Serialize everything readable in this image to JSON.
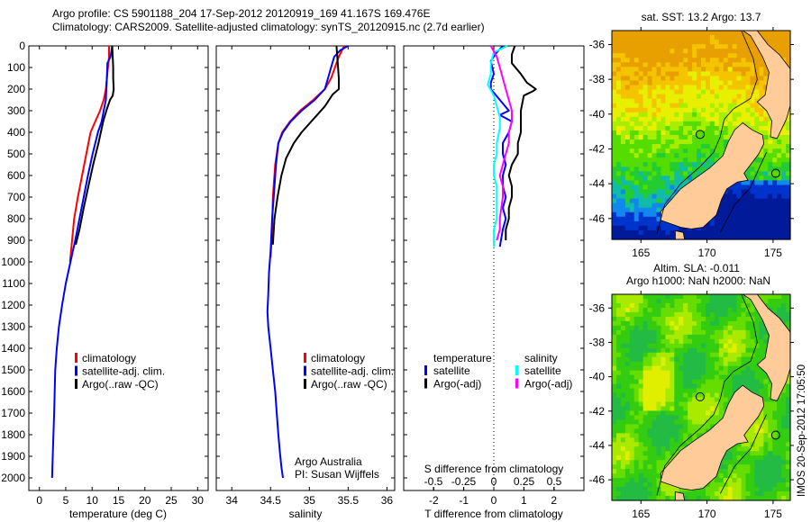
{
  "header": {
    "line1": "Argo profile: CS 5901188_204 17-Sep-2012 20120919_169 41.167S 169.476E",
    "line2": "Climatology: CARS2009. Satellite-adjusted climatology: synTS_20120915.nc (2.7d earlier)"
  },
  "credit": {
    "line1": "Argo Australia",
    "line2": "PI: Susan Wijffels"
  },
  "timestamp": "IMOS 20-Sep-2012 17:05:50",
  "chart_data": [
    {
      "id": "temperature",
      "type": "line",
      "xlabel": "temperature (deg C)",
      "ylabel": "pressure",
      "xlim": [
        -2,
        32
      ],
      "ylim": [
        2080,
        0
      ],
      "xticks": [
        0,
        5,
        10,
        15,
        20,
        25,
        30
      ],
      "yticks": [
        0,
        100,
        200,
        300,
        400,
        500,
        600,
        700,
        800,
        900,
        1000,
        1100,
        1200,
        1300,
        1400,
        1500,
        1600,
        1700,
        1800,
        1900,
        2000
      ],
      "legend": [
        "climatology",
        "satellite-adj. clim.",
        "Argo(..raw -QC)"
      ],
      "legend_position": "lower-center",
      "series": [
        {
          "name": "climatology",
          "color": "#ff0000",
          "x": [
            13.2,
            13.2,
            13.0,
            12.8,
            12.6,
            12.2,
            11.5,
            10.6,
            9.7,
            8.9,
            8.1,
            7.3,
            6.6,
            5.8
          ],
          "y": [
            0,
            50,
            100,
            150,
            200,
            250,
            300,
            350,
            400,
            500,
            600,
            700,
            800,
            1000
          ]
        },
        {
          "name": "satellite-adj. clim.",
          "color": "#0000ff",
          "x": [
            13.8,
            13.5,
            12.9,
            12.8,
            12.7,
            12.6,
            12.2,
            11.8,
            11.1,
            10.1,
            9.2,
            8.4,
            7.6,
            6.8,
            5.9,
            5.0,
            4.3,
            3.7,
            3.3,
            3.0,
            2.8,
            2.6,
            2.4
          ],
          "y": [
            0,
            50,
            80,
            150,
            200,
            250,
            300,
            350,
            400,
            500,
            600,
            700,
            800,
            900,
            1000,
            1100,
            1200,
            1300,
            1400,
            1500,
            1700,
            1850,
            2000
          ]
        },
        {
          "name": "Argo(..raw -QC)",
          "color": "#000000",
          "x": [
            13.8,
            13.9,
            14.0,
            14.0,
            14.1,
            13.9,
            13.4,
            12.7,
            12.1,
            11.2,
            10.2,
            9.3,
            8.4,
            7.6,
            6.9
          ],
          "y": [
            0,
            50,
            100,
            150,
            200,
            230,
            250,
            300,
            350,
            450,
            550,
            650,
            750,
            850,
            920
          ]
        }
      ]
    },
    {
      "id": "salinity",
      "type": "line",
      "xlabel": "salinity",
      "xlim": [
        33.8,
        36.1
      ],
      "ylim": [
        2080,
        0
      ],
      "xticks": [
        34,
        34.5,
        35,
        35.5,
        36
      ],
      "legend": [
        "climatology",
        "satellite-adj. clim.",
        "Argo(..raw -QC)"
      ],
      "legend_position": "lower-right",
      "series": [
        {
          "name": "climatology",
          "color": "#ff0000",
          "x": [
            35.45,
            35.38,
            35.33,
            35.28,
            35.2,
            35.05,
            34.88,
            34.75,
            34.65,
            34.6,
            34.56,
            34.53,
            34.52,
            34.5
          ],
          "y": [
            0,
            50,
            100,
            150,
            200,
            250,
            300,
            350,
            400,
            450,
            550,
            700,
            850,
            980
          ]
        },
        {
          "name": "satellite-adj. clim.",
          "color": "#0000ff",
          "x": [
            35.5,
            35.4,
            35.32,
            35.28,
            35.2,
            35.07,
            34.9,
            34.76,
            34.66,
            34.6,
            34.57,
            34.55,
            34.52,
            34.5,
            34.48,
            34.47,
            34.46,
            34.47,
            34.5,
            34.53,
            34.56,
            34.58,
            34.6,
            34.62,
            34.64,
            34.66
          ],
          "y": [
            0,
            20,
            50,
            100,
            200,
            250,
            300,
            350,
            400,
            450,
            550,
            650,
            800,
            950,
            1050,
            1150,
            1230,
            1300,
            1400,
            1500,
            1600,
            1700,
            1800,
            1880,
            1950,
            2000
          ]
        },
        {
          "name": "Argo(..raw -QC)",
          "color": "#000000",
          "x": [
            35.35,
            35.36,
            35.38,
            35.38,
            35.3,
            35.2,
            35.05,
            34.9,
            34.8,
            34.7,
            34.64,
            34.59,
            34.55,
            34.53
          ],
          "y": [
            0,
            50,
            150,
            200,
            225,
            280,
            340,
            400,
            450,
            520,
            600,
            700,
            800,
            920
          ]
        }
      ]
    },
    {
      "id": "difference",
      "type": "line",
      "xlabel": "T difference from climatology",
      "xlabel_top": "S difference from climatology",
      "xlim": [
        -3,
        3
      ],
      "ylim": [
        2080,
        0
      ],
      "xticks": [
        -2,
        -1,
        0,
        1,
        2
      ],
      "xticks_S": [
        "-0.5",
        "-0.25",
        "0",
        "0.25",
        "0.5"
      ],
      "legend_temperature_title": "temperature",
      "legend_salinity_title": "salinity",
      "legend": [
        {
          "label": "satellite",
          "color": "#0000ff",
          "group": "temperature"
        },
        {
          "label": "Argo(-adj)",
          "color": "#000000",
          "group": "temperature"
        },
        {
          "label": "satellite",
          "color": "#00ffff",
          "group": "salinity"
        },
        {
          "label": "Argo(-adj)",
          "color": "#ff00ff",
          "group": "salinity"
        }
      ],
      "series": [
        {
          "name": "T satellite",
          "color": "#0000ff",
          "x": [
            0.3,
            0.1,
            -0.1,
            0.0,
            -0.1,
            -0.1,
            0.2,
            0.5,
            0.2,
            0.6,
            0.5,
            0.3,
            0.3,
            0.4,
            0.3,
            0.3,
            0.4,
            0.3,
            0.4,
            0.3,
            0.2
          ],
          "y": [
            0,
            30,
            70,
            130,
            170,
            200,
            250,
            300,
            320,
            350,
            400,
            450,
            500,
            550,
            600,
            650,
            700,
            750,
            800,
            850,
            930
          ]
        },
        {
          "name": "T Argo(-adj)",
          "color": "#000000",
          "x": [
            0.7,
            0.6,
            0.6,
            0.9,
            1.1,
            1.4,
            1.3,
            1.0,
            0.9,
            0.9,
            0.9,
            0.8,
            0.8,
            0.6,
            0.5,
            0.6,
            0.6,
            0.5,
            0.5,
            0.4,
            0.4
          ],
          "y": [
            0,
            40,
            80,
            130,
            170,
            200,
            210,
            230,
            300,
            350,
            400,
            450,
            500,
            550,
            600,
            650,
            700,
            750,
            800,
            850,
            900
          ]
        },
        {
          "name": "S satellite",
          "color": "#00ffff",
          "x": [
            0.45,
            0.0,
            -0.1,
            -0.1,
            -0.2,
            0.0,
            0.1,
            0.2,
            0.2,
            0.1,
            0.1,
            0.0,
            0.0,
            0.1,
            0.1,
            0.1,
            0.1,
            0.0,
            0.0
          ],
          "y": [
            0,
            30,
            80,
            130,
            180,
            230,
            280,
            330,
            380,
            450,
            500,
            550,
            600,
            650,
            700,
            750,
            800,
            850,
            930
          ]
        },
        {
          "name": "S Argo(-adj)",
          "color": "#ff00ff",
          "x": [
            -0.1,
            0.1,
            0.2,
            0.3,
            0.4,
            0.5,
            0.6,
            0.6,
            0.5,
            0.5,
            0.4,
            0.3,
            0.2,
            0.3,
            0.3,
            0.2,
            0.2,
            0.1
          ],
          "y": [
            0,
            50,
            100,
            150,
            200,
            250,
            300,
            350,
            400,
            450,
            500,
            550,
            600,
            650,
            700,
            800,
            850,
            900
          ]
        }
      ]
    },
    {
      "id": "sst-map",
      "type": "heatmap",
      "title": "sat. SST: 13.2 Argo: 13.7",
      "xlim": [
        162.8,
        176.3
      ],
      "ylim": [
        -47.2,
        -35.2
      ],
      "xticks": [
        165,
        170,
        175
      ],
      "yticks": [
        -36,
        -38,
        -40,
        -42,
        -44,
        -46
      ],
      "argo_position": {
        "lon": 169.476,
        "lat": -41.167
      }
    },
    {
      "id": "sla-map",
      "type": "heatmap",
      "title_line1": "Altim. SLA: -0.011",
      "title_line2": "Argo h1000: NaN h2000: NaN",
      "xlim": [
        162.8,
        176.3
      ],
      "ylim": [
        -47.2,
        -35.2
      ],
      "xticks": [
        165,
        170,
        175
      ],
      "yticks": [
        -36,
        -38,
        -40,
        -42,
        -44,
        -46
      ],
      "argo_position": {
        "lon": 169.476,
        "lat": -41.167
      }
    }
  ]
}
